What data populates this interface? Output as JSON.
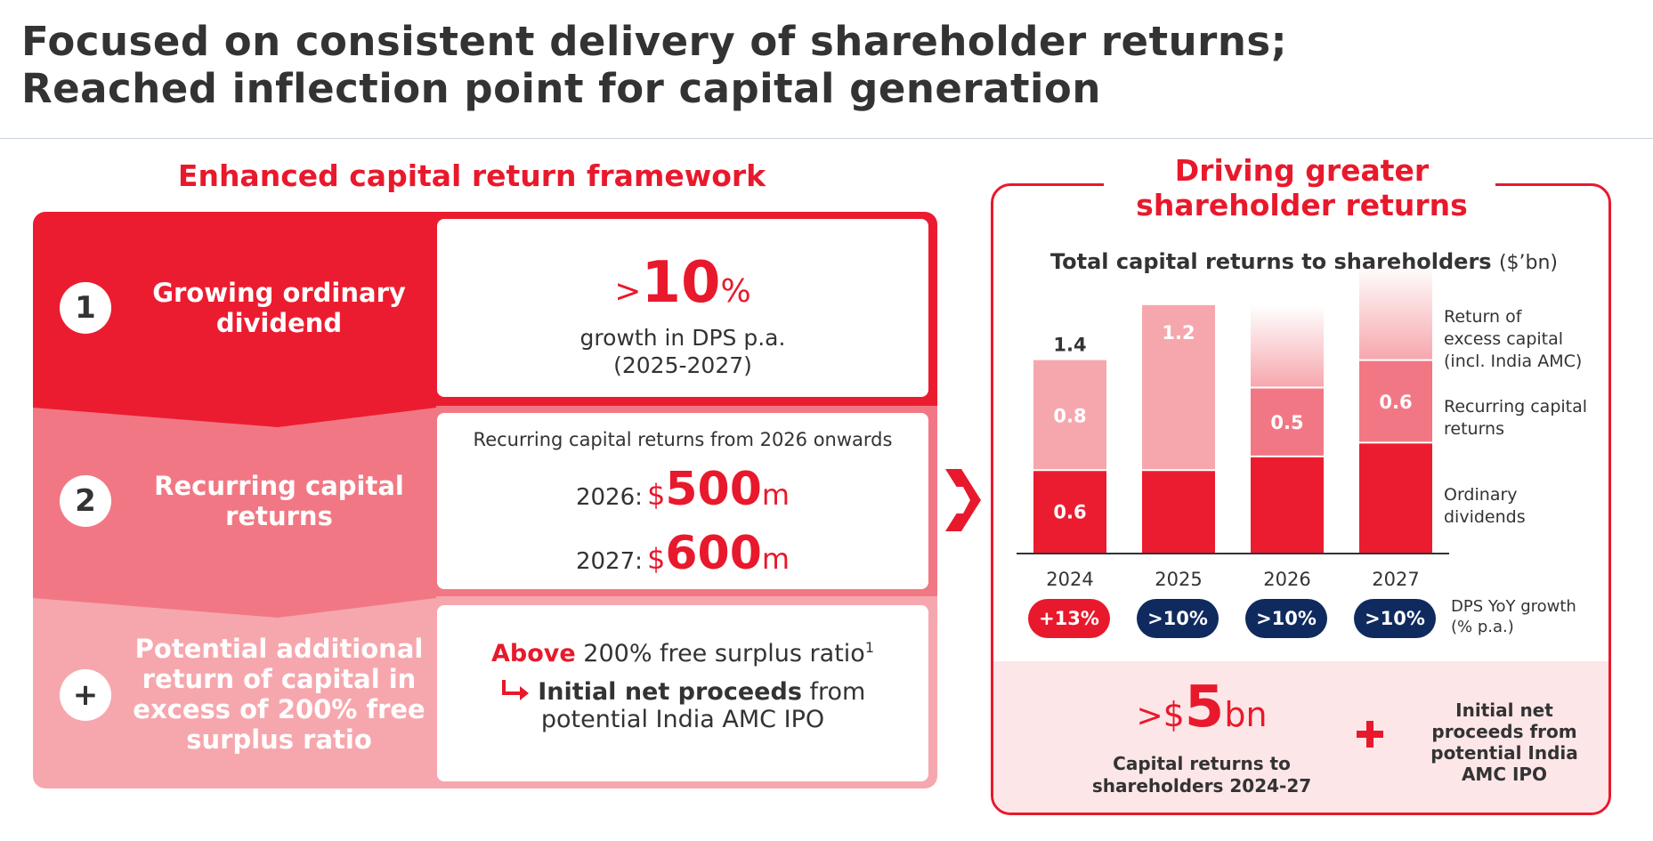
{
  "title": {
    "line1": "Focused on consistent delivery of shareholder returns;",
    "line2": "Reached inflection point for capital generation"
  },
  "left": {
    "heading": "Enhanced capital return framework",
    "rows": [
      {
        "number": "1",
        "title": "Growing ordinary dividend",
        "gt": ">",
        "value": "10",
        "pct": "%",
        "line1": "growth in DPS p.a.",
        "line2": "(2025-2027)"
      },
      {
        "number": "2",
        "title": "Recurring capital returns",
        "intro": "Recurring capital returns from 2026 onwards",
        "items": [
          {
            "year": "2026:",
            "cur": "$",
            "amount": "500",
            "unit": "m"
          },
          {
            "year": "2027:",
            "cur": "$",
            "amount": "600",
            "unit": "m"
          }
        ]
      },
      {
        "number": "+",
        "title": "Potential additional return of capital in excess of 200% free surplus ratio",
        "above": "Above",
        "ratio_text": "200% free surplus ratio",
        "footnote": "1",
        "proceeds_bold": "Initial net proceeds",
        "proceeds_rest": "from",
        "proceeds_line2": "potential India AMC IPO"
      }
    ]
  },
  "right": {
    "heading_line1": "Driving greater",
    "heading_line2": "shareholder returns",
    "chart_title": "Total capital returns to shareholders",
    "chart_unit": "($’bn)",
    "legend": {
      "excess": [
        "Return of",
        "excess capital",
        "(incl. India AMC)"
      ],
      "recurring": [
        "Recurring capital",
        "returns"
      ],
      "ordinary": [
        "Ordinary",
        "dividends"
      ],
      "dps": [
        "DPS YoY growth",
        "(% p.a.)"
      ]
    },
    "dps_growth": [
      "+13%",
      ">10%",
      ">10%",
      ">10%"
    ],
    "total": {
      "gt": ">",
      "cur": "$",
      "value": "5",
      "unit": "bn",
      "label_line1": "Capital returns to",
      "label_line2": "shareholders 2024-27"
    },
    "ipo": [
      "Initial net",
      "proceeds from",
      "potential India",
      "AMC IPO"
    ]
  },
  "colors": {
    "red": "#e8192c",
    "mid_pink": "#f27784",
    "light_pink": "#f6a7ad",
    "navy": "#0f2a5e",
    "bar_ordinary": "#ec1c30",
    "bar_recurring": "#f27784",
    "bar_excess": "#f6a7ad"
  },
  "icons": {
    "chevron": "double-chevron-right-icon",
    "plus": "plus-icon",
    "arrow": "elbow-arrow-icon"
  },
  "chart_data": {
    "type": "bar",
    "stacked": true,
    "title": "Total capital returns to shareholders ($’bn)",
    "categories": [
      "2024",
      "2025",
      "2026",
      "2027"
    ],
    "series": [
      {
        "name": "Ordinary dividends",
        "values": [
          0.6,
          0.6,
          0.7,
          0.8
        ],
        "labels": [
          "0.6",
          "",
          "",
          ""
        ]
      },
      {
        "name": "Recurring capital returns",
        "values": [
          0,
          0,
          0.5,
          0.6
        ],
        "labels": [
          "",
          "",
          "0.5",
          "0.6"
        ]
      },
      {
        "name": "Return of excess capital (incl. India AMC)",
        "values": [
          0.8,
          1.2,
          0.6,
          0.7
        ],
        "labels": [
          "0.8",
          "1.2",
          "",
          ""
        ]
      }
    ],
    "totals_labels": [
      "1.4",
      "",
      "",
      ""
    ],
    "faded_top": [
      false,
      false,
      true,
      true
    ],
    "ylim": [
      0,
      2.2
    ]
  }
}
